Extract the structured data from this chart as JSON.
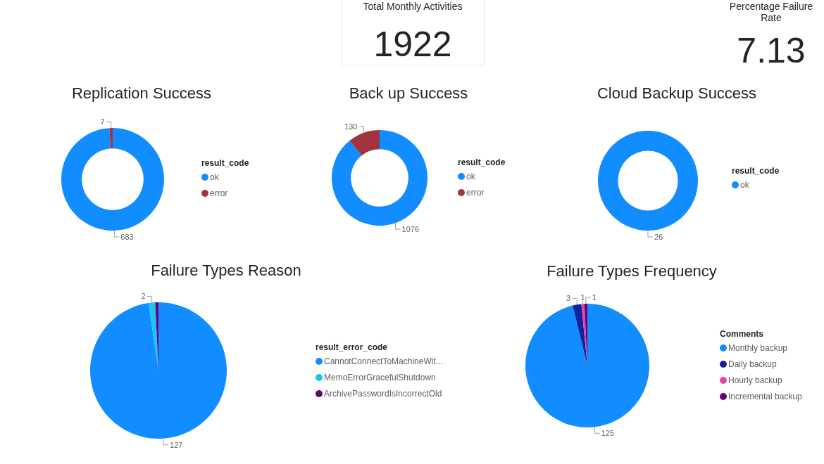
{
  "chart_data": [
    {
      "type": "other",
      "title": "Total Monthly Activities",
      "annotations": [
        "1922"
      ]
    },
    {
      "type": "other",
      "title": "Percentage Failure Rate",
      "annotations": [
        "7.13"
      ]
    },
    {
      "type": "donut",
      "title": "Replication Success",
      "legend_title": "result_code",
      "categories": [
        "ok",
        "error"
      ],
      "values": [
        683,
        7
      ],
      "colors": [
        "#118dff",
        "#a1343c"
      ],
      "data_labels": true,
      "legend": "right"
    },
    {
      "type": "donut",
      "title": "Back up Success",
      "legend_title": "result_code",
      "categories": [
        "ok",
        "error"
      ],
      "values": [
        1076,
        130
      ],
      "colors": [
        "#118dff",
        "#a1343c"
      ],
      "data_labels": true,
      "legend": "right"
    },
    {
      "type": "donut",
      "title": "Cloud Backup Success",
      "legend_title": "result_code",
      "categories": [
        "ok"
      ],
      "values": [
        26
      ],
      "colors": [
        "#118dff"
      ],
      "data_labels": true,
      "legend": "right"
    },
    {
      "type": "pie",
      "title": "Failure Types Reason",
      "legend_title": "result_error_code",
      "categories": [
        "CannotConnectToMachineWit...",
        "MemoErrorGracefulShutdown",
        "ArchivePasswordIsIncorrectOld"
      ],
      "values": [
        127,
        2,
        1
      ],
      "colors": [
        "#118dff",
        "#1ac6ef",
        "#6b007b"
      ],
      "value_labels": [
        "127",
        "2",
        null
      ],
      "legend": "right"
    },
    {
      "type": "pie",
      "title": "Failure Types Frequency",
      "legend_title": "Comments",
      "categories": [
        "Monthly backup",
        "Daily backup",
        "Hourly backup",
        "Incremental backup"
      ],
      "values": [
        125,
        3,
        1,
        1
      ],
      "colors": [
        "#118dff",
        "#12239e",
        "#e044a7",
        "#6b007b"
      ],
      "data_labels": true,
      "legend": "right"
    }
  ]
}
